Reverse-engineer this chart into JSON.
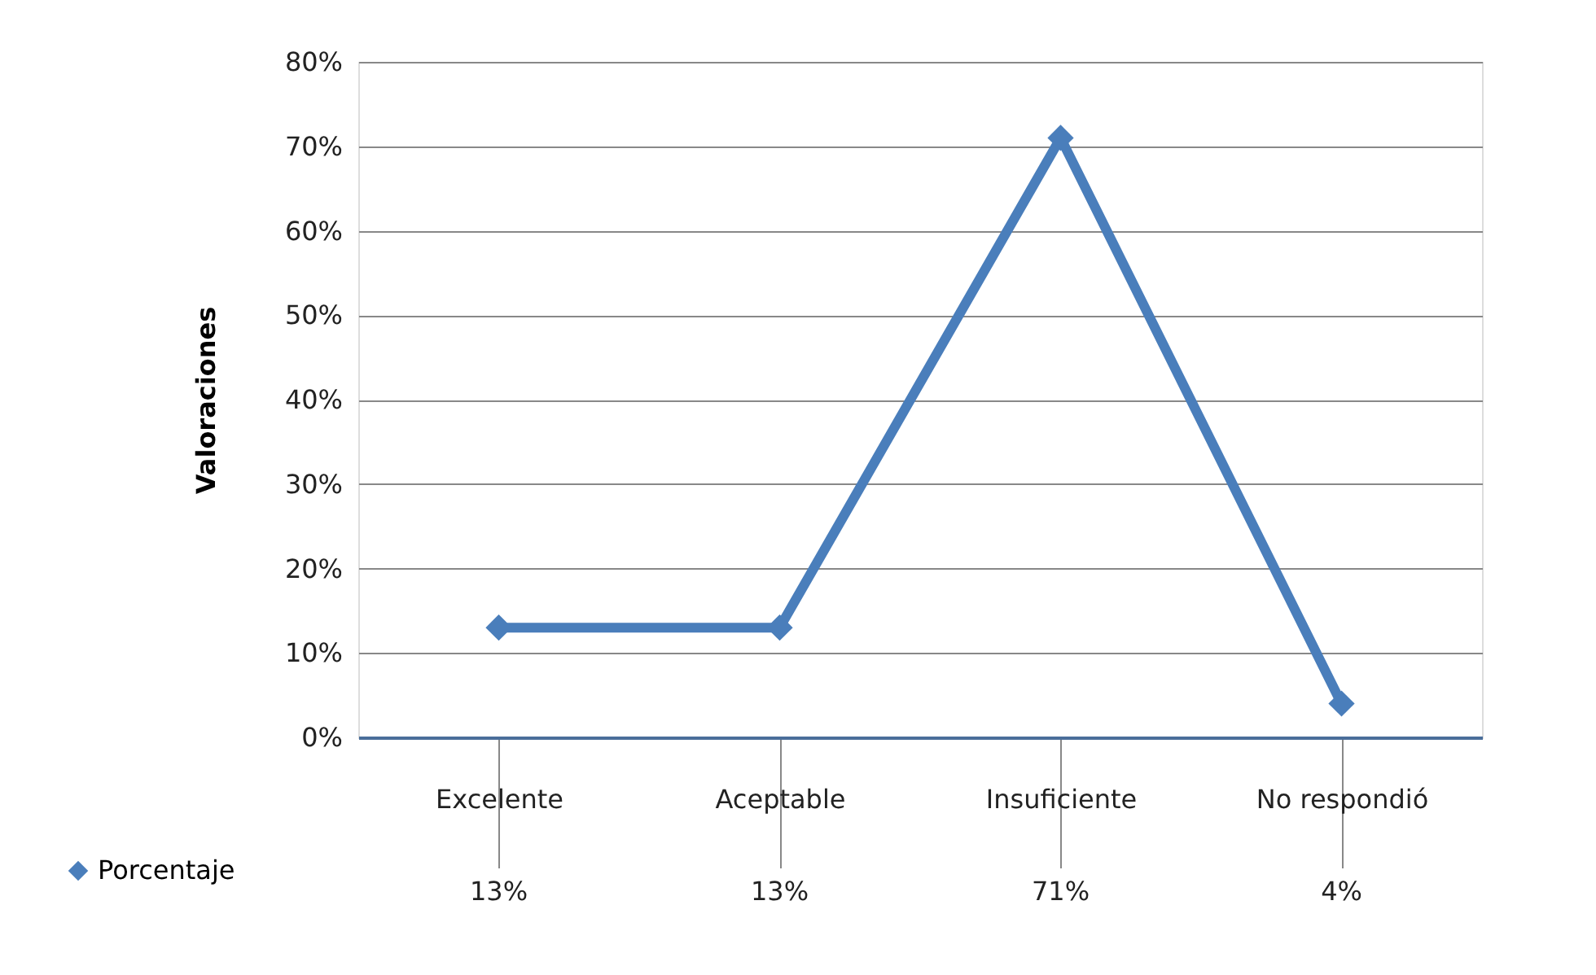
{
  "chart_data": {
    "type": "line",
    "ylabel": "Valoraciones",
    "categories": [
      "Excelente",
      "Aceptable",
      "Insuficiente",
      "No respondió"
    ],
    "series": [
      {
        "name": "Porcentaje",
        "color": "#4a7ebb",
        "values": [
          13,
          13,
          71,
          4
        ],
        "value_labels": [
          "13%",
          "13%",
          "71%",
          "4%"
        ]
      }
    ],
    "ylim": [
      0,
      80
    ],
    "yticks": [
      {
        "value": 0,
        "label": "0%"
      },
      {
        "value": 10,
        "label": "10%"
      },
      {
        "value": 20,
        "label": "20%"
      },
      {
        "value": 30,
        "label": "30%"
      },
      {
        "value": 40,
        "label": "40%"
      },
      {
        "value": 50,
        "label": "50%"
      },
      {
        "value": 60,
        "label": "60%"
      },
      {
        "value": 70,
        "label": "70%"
      },
      {
        "value": 80,
        "label": "80%"
      }
    ],
    "grid": "y",
    "legend": "bottom left",
    "marker": "diamond",
    "line_style": "solid"
  }
}
